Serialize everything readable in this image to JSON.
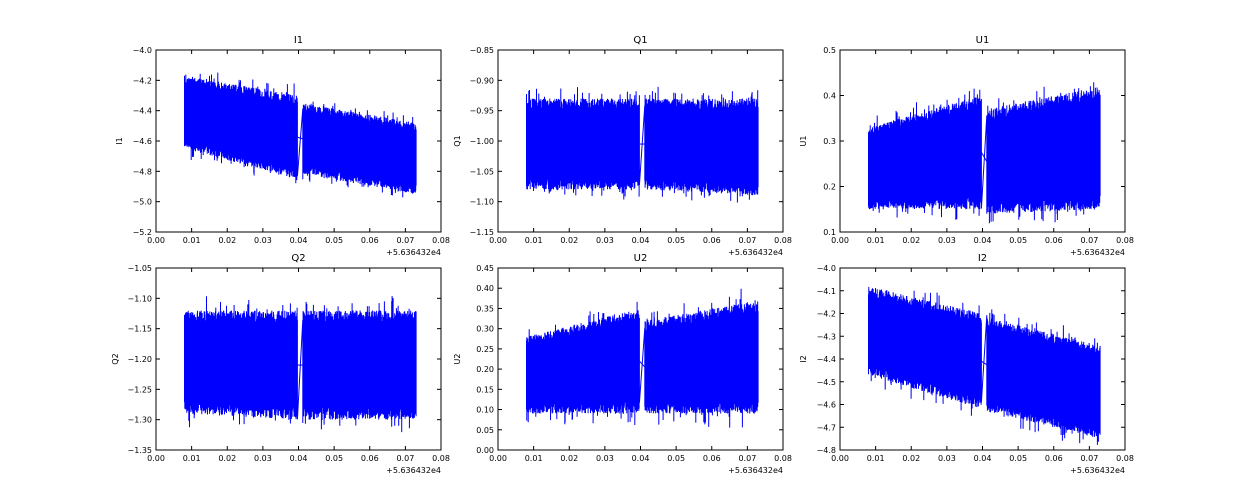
{
  "chart_data": [
    {
      "type": "line",
      "title": "I1",
      "ylabel": "I1",
      "xlim": [
        0,
        0.08
      ],
      "ylim": [
        -5.2,
        -4.0
      ],
      "ystep": 0.2,
      "ydec": 1,
      "color": "#0000ff",
      "x_offset_label": "+5.636432e4",
      "segments": [
        {
          "x": [
            0.008,
            0.0397
          ],
          "top": [
            -4.17,
            -4.3
          ],
          "bottom": [
            -4.65,
            -4.85
          ]
        },
        {
          "x": [
            0.0412,
            0.073
          ],
          "top": [
            -4.35,
            -4.48
          ],
          "bottom": [
            -4.82,
            -4.95
          ]
        }
      ]
    },
    {
      "type": "line",
      "title": "Q1",
      "ylabel": "Q1",
      "xlim": [
        0,
        0.08
      ],
      "ylim": [
        -1.15,
        -0.85
      ],
      "ystep": 0.05,
      "ydec": 2,
      "color": "#0000ff",
      "x_offset_label": "+5.636432e4",
      "segments": [
        {
          "x": [
            0.008,
            0.0397
          ],
          "top": [
            -0.93,
            -0.93
          ],
          "bottom": [
            -1.08,
            -1.08
          ]
        },
        {
          "x": [
            0.0412,
            0.073
          ],
          "top": [
            -0.93,
            -0.93
          ],
          "bottom": [
            -1.08,
            -1.09
          ]
        }
      ]
    },
    {
      "type": "line",
      "title": "U1",
      "ylabel": "U1",
      "xlim": [
        0,
        0.08
      ],
      "ylim": [
        0.1,
        0.5
      ],
      "ystep": 0.1,
      "ydec": 1,
      "color": "#0000ff",
      "x_offset_label": "+5.636432e4",
      "segments": [
        {
          "x": [
            0.008,
            0.0397
          ],
          "top": [
            0.33,
            0.4
          ],
          "bottom": [
            0.15,
            0.15
          ]
        },
        {
          "x": [
            0.0412,
            0.073
          ],
          "top": [
            0.37,
            0.42
          ],
          "bottom": [
            0.14,
            0.15
          ]
        }
      ]
    },
    {
      "type": "line",
      "title": "Q2",
      "ylabel": "Q2",
      "xlim": [
        0,
        0.08
      ],
      "ylim": [
        -1.35,
        -1.05
      ],
      "ystep": 0.05,
      "ydec": 2,
      "color": "#0000ff",
      "x_offset_label": "+5.636432e4",
      "segments": [
        {
          "x": [
            0.008,
            0.0397
          ],
          "top": [
            -1.12,
            -1.12
          ],
          "bottom": [
            -1.29,
            -1.3
          ]
        },
        {
          "x": [
            0.0412,
            0.073
          ],
          "top": [
            -1.12,
            -1.12
          ],
          "bottom": [
            -1.3,
            -1.3
          ]
        }
      ]
    },
    {
      "type": "line",
      "title": "U2",
      "ylabel": "U2",
      "xlim": [
        0,
        0.08
      ],
      "ylim": [
        0,
        0.45
      ],
      "ystep": 0.05,
      "ydec": 2,
      "color": "#0000ff",
      "x_offset_label": "+5.636432e4",
      "segments": [
        {
          "x": [
            0.008,
            0.0397
          ],
          "top": [
            0.28,
            0.35
          ],
          "bottom": [
            0.09,
            0.09
          ]
        },
        {
          "x": [
            0.0412,
            0.073
          ],
          "top": [
            0.32,
            0.37
          ],
          "bottom": [
            0.09,
            0.09
          ]
        }
      ]
    },
    {
      "type": "line",
      "title": "I2",
      "ylabel": "I2",
      "xlim": [
        0,
        0.08
      ],
      "ylim": [
        -4.8,
        -4.0
      ],
      "ystep": 0.1,
      "ydec": 1,
      "color": "#0000ff",
      "x_offset_label": "+5.636432e4",
      "segments": [
        {
          "x": [
            0.008,
            0.0397
          ],
          "top": [
            -4.08,
            -4.2
          ],
          "bottom": [
            -4.47,
            -4.62
          ]
        },
        {
          "x": [
            0.0412,
            0.073
          ],
          "top": [
            -4.22,
            -4.34
          ],
          "bottom": [
            -4.63,
            -4.75
          ]
        }
      ]
    }
  ]
}
